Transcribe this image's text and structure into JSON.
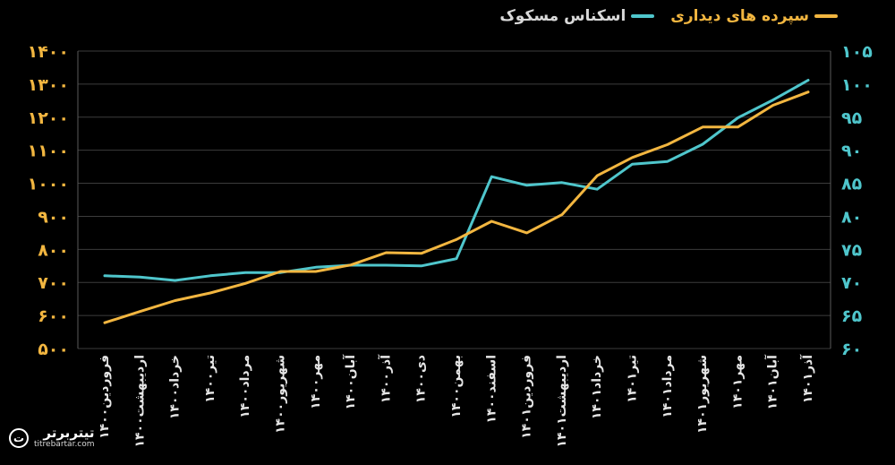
{
  "chart_data": {
    "type": "line",
    "title": "",
    "xlabel": "",
    "categories": [
      "فروردین۱۴۰۰",
      "اردیبهشت۱۴۰۰",
      "خرداد۱۴۰۰",
      "تیر۱۴۰۰",
      "مرداد۱۴۰۰",
      "شهریور۱۴۰۰",
      "مهر۱۴۰۰",
      "آبان۱۴۰۰",
      "آذر۱۴۰۰",
      "دی۱۴۰۰",
      "بهمن۱۴۰۰",
      "اسفند۱۴۰۰",
      "فروردین۱۴۰۱",
      "اردیبهشت۱۴۰۱",
      "خرداد۱۴۰۱",
      "تیر۱۴۰۱",
      "مرداد۱۴۰۱",
      "شهریور۱۴۰۱",
      "مهر۱۴۰۱",
      "آبان۱۴۰۱",
      "آذر۱۴۰۱"
    ],
    "left_axis": {
      "ylim": [
        500,
        1400
      ],
      "ticks": [
        500,
        600,
        700,
        800,
        900,
        1000,
        1100,
        1200,
        1300,
        1400
      ],
      "tick_labels": [
        "۵۰۰",
        "۶۰۰",
        "۷۰۰",
        "۸۰۰",
        "۹۰۰",
        "۱۰۰۰",
        "۱۱۰۰",
        "۱۲۰۰",
        "۱۳۰۰",
        "۱۴۰۰"
      ],
      "color": "#f2b640"
    },
    "right_axis": {
      "ylim": [
        60,
        105
      ],
      "ticks": [
        60,
        65,
        70,
        75,
        80,
        85,
        90,
        95,
        100,
        105
      ],
      "tick_labels": [
        "۶۰",
        "۶۵",
        "۷۰",
        "۷۵",
        "۸۰",
        "۸۵",
        "۹۰",
        "۹۵",
        "۱۰۰",
        "۱۰۵"
      ],
      "color": "#4fc6cc"
    },
    "series": [
      {
        "name": "اسکناس مسکوک",
        "axis": "right",
        "color": "#4fc6cc",
        "values": [
          71.0,
          70.8,
          70.3,
          71.0,
          71.5,
          71.5,
          72.3,
          72.6,
          72.6,
          72.5,
          73.6,
          86.0,
          84.7,
          85.1,
          84.1,
          87.9,
          88.3,
          90.9,
          94.9,
          97.6,
          100.6
        ]
      },
      {
        "name": "سپرده های دیداری",
        "axis": "left",
        "color": "#f2b640",
        "values": [
          578,
          612,
          645,
          668,
          697,
          733,
          733,
          753,
          790,
          788,
          830,
          885,
          850,
          905,
          1023,
          1078,
          1117,
          1170,
          1170,
          1236,
          1276
        ]
      }
    ],
    "grid": "horizontal",
    "legend": "top-right"
  },
  "branding": {
    "logo_fa": "تیتربرتر",
    "logo_en": "titrebartar.com"
  }
}
